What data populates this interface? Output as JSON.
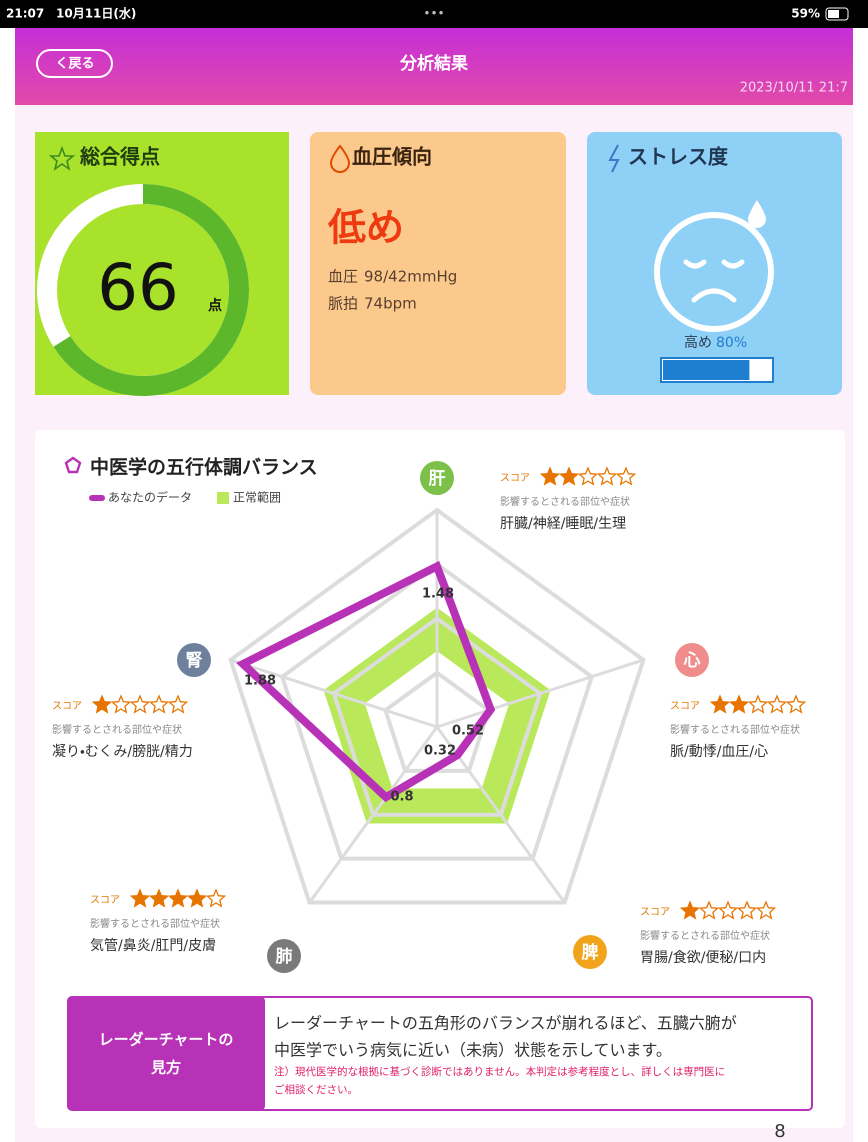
{
  "status_bar": {
    "time": "21:07",
    "date": "10月11日(水)",
    "battery": "59%"
  },
  "header": {
    "back": "く戻る",
    "title": "分析結果",
    "datetime": "2023/10/11 21:7"
  },
  "cards": {
    "score": {
      "title": "総合得点",
      "value": 66,
      "gauge_max": 100,
      "unit": "点"
    },
    "blood_pressure": {
      "title": "血圧傾向",
      "level": "低め",
      "pressure_label": "血圧",
      "pressure": "98/42mmHg",
      "pulse_label": "脈拍",
      "pulse": "74bpm"
    },
    "stress": {
      "title": "ストレス度",
      "level": "高め",
      "percent": 80,
      "percent_label": "80%"
    }
  },
  "radar": {
    "title": "中医学の五行体調バランス",
    "legend": {
      "you": "あなたのデータ",
      "normal": "正常範囲"
    },
    "you_color": "#b832b8",
    "normal_color": "#b9e85a",
    "rlim": [
      0,
      2
    ],
    "rings": [
      0.5,
      1,
      1.5,
      2
    ],
    "normal_range": [
      0.7,
      1.1
    ],
    "stars_max": 5,
    "score_label": "スコア",
    "affects_label": "影響するとされる部位や症状",
    "axes": [
      {
        "label": "肝",
        "color": "#7cc04a",
        "value": 1.48,
        "stars": 2,
        "symptoms": "肝臓/神経/睡眠/生理"
      },
      {
        "label": "心",
        "color": "#f08c8c",
        "value": 0.52,
        "stars": 2,
        "symptoms": "脈/動悸/血圧/心"
      },
      {
        "label": "脾",
        "color": "#f2a31c",
        "value": 0.32,
        "stars": 1,
        "symptoms": "胃腸/食欲/便秘/口内"
      },
      {
        "label": "肺",
        "color": "#7a7a7a",
        "value": 0.8,
        "stars": 4,
        "symptoms": "気管/鼻炎/肛門/皮膚"
      },
      {
        "label": "腎",
        "color": "#6d819c",
        "value": 1.88,
        "stars": 1,
        "symptoms": "凝り・むくみ/膀胱/精力"
      }
    ]
  },
  "note": {
    "heading": [
      "レーダーチャートの",
      "見方"
    ],
    "text": [
      "レーダーチャートの五角形のバランスが崩れるほど、五臓六腑が",
      "中医学でいう病気に近い（未病）状態を示しています。"
    ],
    "disclaimer": [
      "注）現代医学的な根拠に基づく診断ではありません。本判定は参考程度とし、詳しくは専門医に",
      "ご相談ください。"
    ]
  },
  "page_number": "8"
}
